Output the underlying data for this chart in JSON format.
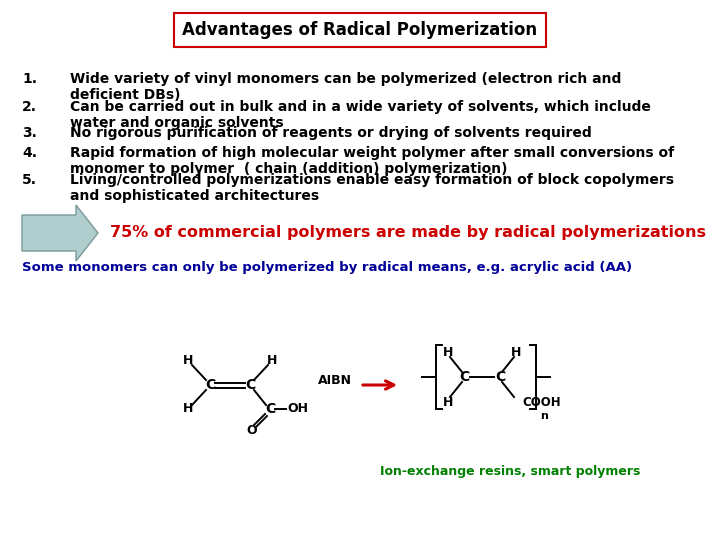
{
  "title": "Advantages of Radical Polymerization",
  "title_fontsize": 12,
  "title_box_color": "#cc0000",
  "background_color": "#ffffff",
  "bullet_points": [
    [
      "Wide variety of vinyl monomers can be polymerized (electron rich and",
      "deficient DBs)"
    ],
    [
      "Can be carried out in bulk and in a wide variety of solvents, which include",
      "water and organic solvents"
    ],
    [
      "No rigorous purification of reagents or drying of solvents required"
    ],
    [
      "Rapid formation of high molecular weight polymer after small conversions of",
      "monomer to polymer  ( chain (addition) polymerization)"
    ],
    [
      "Living/controlled polymerizations enable easy formation of block copolymers",
      "and sophisticated architectures"
    ]
  ],
  "highlight_text": "75% of commercial polymers are made by radical polymerizations",
  "highlight_color": "#cc0000",
  "highlight_fontsize": 11.5,
  "arrow_fill_color": "#b0cece",
  "arrow_edge_color": "#7a9999",
  "sub_text": "Some monomers can only be polymerized by radical means, e.g. acrylic acid (AA)",
  "sub_text_color": "#000099",
  "sub_text_fontsize": 9.5,
  "footer_text": "Ion-exchange resins, smart polymers",
  "footer_color": "#008000",
  "footer_fontsize": 9,
  "bullet_fontsize": 10,
  "bullet_color": "#000000",
  "chem_black": "#000000",
  "chem_red": "#cc0000"
}
